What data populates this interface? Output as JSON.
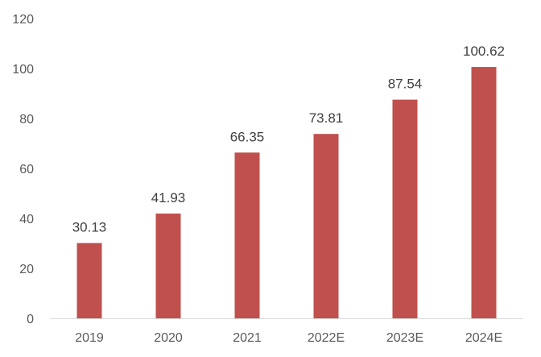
{
  "chart_data": {
    "type": "bar",
    "categories": [
      "2019",
      "2020",
      "2021",
      "2022E",
      "2023E",
      "2024E"
    ],
    "values": [
      30.13,
      41.93,
      66.35,
      73.81,
      87.54,
      100.62
    ],
    "data_labels": [
      "30.13",
      "41.93",
      "66.35",
      "73.81",
      "87.54",
      "100.62"
    ],
    "ylim": [
      0,
      120
    ],
    "yticks": [
      0,
      20,
      40,
      60,
      80,
      100,
      120
    ],
    "grid": false,
    "legend": "none",
    "bar_color": "#C0504D",
    "axis_color": "#D9D9D9"
  }
}
